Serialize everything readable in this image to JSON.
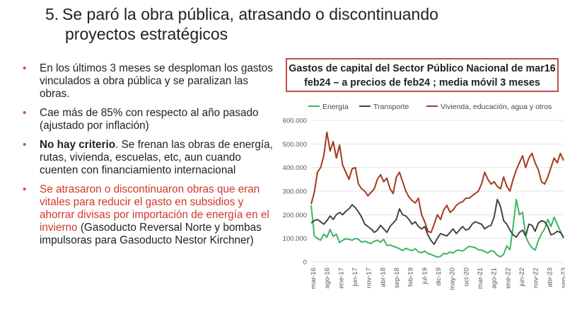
{
  "slide": {
    "title_number": "5.",
    "title_line1": "Se paró la obra pública, atrasando o discontinuando",
    "title_line2": "proyectos estratégicos"
  },
  "bullets": [
    {
      "text": "En los últimos 3 meses se desploman los gastos vinculados a obra pública y se paralizan las obras."
    },
    {
      "text": "Cae más de 85% con respecto al año pasado (ajustado por inflación)"
    },
    {
      "bold": "No hay criterio",
      "text": ". Se frenan las obras de energía, rutas, vivienda, escuelas, etc, aun cuando cuenten con financiamiento internacional"
    },
    {
      "red": "Se atrasaron o discontinuaron obras que eran vitales para reducir el gasto en subsidios y ahorrar divisas por importación de energía en el invierno",
      "text": " (Gasoducto Reversal Norte y bombas impulsoras para Gasoducto Nestor Kirchner)"
    }
  ],
  "colors": {
    "bullet": "#c0504d",
    "red_text": "#d0382b",
    "energia": "#3cb563",
    "transporte": "#444444",
    "vivienda": "#a23a1c"
  },
  "chart_data": {
    "type": "line",
    "title": "Gastos de capital del Sector Público Nacional de mar16 feb24 – a precios de feb24 ; media móvil 3 meses",
    "title_line1": "Gastos de capital del Sector Público Nacional de mar16",
    "title_line2": "feb24 – a precios de feb24 ; media móvil 3 meses",
    "xlabel": "",
    "ylabel": "",
    "ylim": [
      0,
      600000
    ],
    "yticks": [
      "0",
      "100.000",
      "200.000",
      "300.000",
      "400.000",
      "500.000",
      "600.000"
    ],
    "xticks": [
      "mar-16",
      "ago-16",
      "ene-17",
      "jun-17",
      "nov-17",
      "abr-18",
      "sep-18",
      "feb-19",
      "jul-19",
      "dic-19",
      "may-20",
      "oct-20",
      "mar-21",
      "ago-21",
      "ene-22",
      "jun-22",
      "nov-22",
      "abr-23",
      "sep-23"
    ],
    "legend_position": "top",
    "grid": true,
    "series": [
      {
        "name": "Energía",
        "values": [
          240000,
          110000,
          100000,
          92000,
          118000,
          105000,
          138000,
          108000,
          118000,
          82000,
          92000,
          98000,
          96000,
          92000,
          100000,
          96000,
          84000,
          88000,
          82000,
          78000,
          88000,
          92000,
          84000,
          96000,
          70000,
          72000,
          66000,
          62000,
          56000,
          48000,
          58000,
          52000,
          48000,
          56000,
          42000,
          40000,
          46000,
          36000,
          32000,
          26000,
          20000,
          24000,
          36000,
          34000,
          42000,
          38000,
          48000,
          50000,
          46000,
          56000,
          66000,
          64000,
          60000,
          52000,
          50000,
          44000,
          38000,
          48000,
          44000,
          28000,
          22000,
          32000,
          68000,
          52000,
          150000,
          265000,
          200000,
          210000,
          110000,
          78000,
          60000,
          50000,
          90000,
          120000,
          140000,
          180000,
          150000,
          190000,
          160000,
          130000,
          100000
        ]
      },
      {
        "name": "Transporte",
        "values": [
          165000,
          175000,
          180000,
          170000,
          160000,
          175000,
          195000,
          180000,
          200000,
          210000,
          200000,
          215000,
          225000,
          242000,
          230000,
          212000,
          190000,
          160000,
          150000,
          140000,
          125000,
          135000,
          155000,
          140000,
          125000,
          150000,
          165000,
          180000,
          225000,
          200000,
          195000,
          180000,
          160000,
          170000,
          150000,
          140000,
          150000,
          115000,
          90000,
          75000,
          100000,
          120000,
          115000,
          110000,
          125000,
          140000,
          120000,
          135000,
          150000,
          135000,
          140000,
          160000,
          170000,
          165000,
          160000,
          140000,
          150000,
          155000,
          190000,
          265000,
          235000,
          175000,
          160000,
          135000,
          115000,
          105000,
          125000,
          135000,
          110000,
          160000,
          155000,
          130000,
          165000,
          175000,
          170000,
          150000,
          115000,
          120000,
          130000,
          125000,
          105000
        ]
      },
      {
        "name": "Vivienda, educación, agua y otros",
        "values": [
          245000,
          295000,
          380000,
          400000,
          450000,
          550000,
          470000,
          510000,
          440000,
          495000,
          410000,
          380000,
          350000,
          395000,
          400000,
          330000,
          310000,
          300000,
          280000,
          295000,
          310000,
          350000,
          370000,
          340000,
          355000,
          310000,
          290000,
          360000,
          380000,
          340000,
          300000,
          275000,
          260000,
          250000,
          270000,
          200000,
          170000,
          130000,
          125000,
          160000,
          200000,
          180000,
          220000,
          240000,
          210000,
          220000,
          240000,
          250000,
          255000,
          270000,
          270000,
          280000,
          290000,
          300000,
          330000,
          380000,
          350000,
          330000,
          340000,
          320000,
          310000,
          360000,
          320000,
          300000,
          350000,
          390000,
          420000,
          450000,
          400000,
          440000,
          460000,
          420000,
          390000,
          340000,
          330000,
          360000,
          400000,
          440000,
          420000,
          460000,
          430000
        ]
      }
    ]
  }
}
